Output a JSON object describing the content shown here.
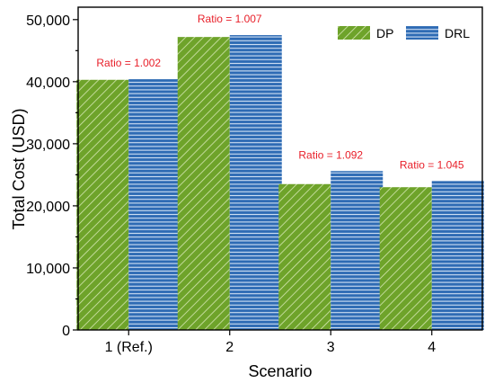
{
  "chart_data": {
    "type": "bar",
    "categories": [
      "1 (Ref.)",
      "2",
      "3",
      "4"
    ],
    "series": [
      {
        "name": "DP",
        "values": [
          40300,
          47200,
          23500,
          23000
        ],
        "color": "#6ea32a",
        "pattern": "diagonal-hatch"
      },
      {
        "name": "DRL",
        "values": [
          40400,
          47500,
          25600,
          24000
        ],
        "color": "#2e6bb4",
        "pattern": "horizontal-lines"
      }
    ],
    "annotations": [
      "Ratio = 1.002",
      "Ratio = 1.007",
      "Ratio = 1.092",
      "Ratio = 1.045"
    ],
    "annotation_color": "#e8202a",
    "xlabel": "Scenario",
    "ylabel": "Total Cost (USD)",
    "ylim": [
      0,
      52000
    ],
    "yticks": [
      0,
      10000,
      20000,
      30000,
      40000,
      50000
    ],
    "ytick_labels": [
      "0",
      "10,000",
      "20,000",
      "30,000",
      "40,000",
      "50,000"
    ],
    "grid": false,
    "legend_position": "top-right"
  }
}
